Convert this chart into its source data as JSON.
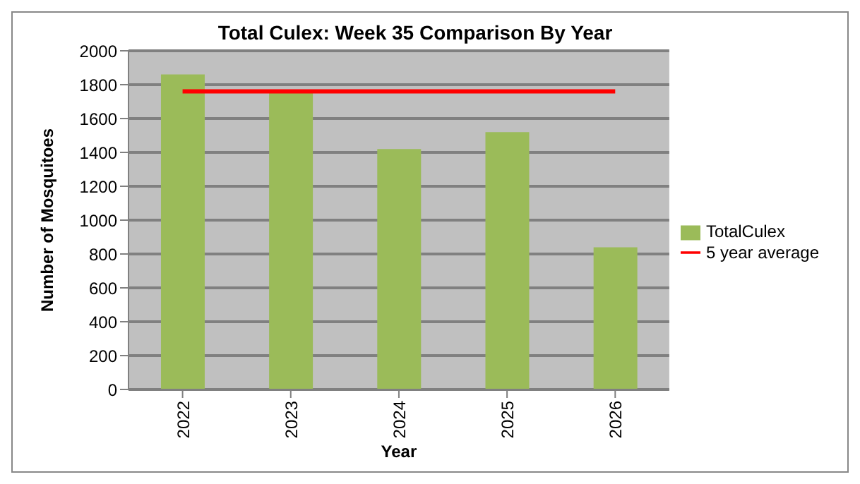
{
  "chart_data": {
    "type": "bar",
    "title": "Total Culex: Week 35 Comparison By Year",
    "xlabel": "Year",
    "ylabel": "Number of Mosquitoes",
    "categories": [
      "2022",
      "2023",
      "2024",
      "2025",
      "2026"
    ],
    "series": [
      {
        "name": "TotalCulex",
        "color": "#9bbb59",
        "values": [
          1860,
          1770,
          1420,
          1520,
          840
        ]
      },
      {
        "name": "5 year average",
        "type": "line",
        "color": "#ff0000",
        "values": [
          1760,
          1760,
          1760,
          1760,
          1760
        ],
        "marker": "none",
        "line_style": "solid"
      }
    ],
    "ylim": [
      0,
      2000
    ],
    "yticks": [
      0,
      200,
      400,
      600,
      800,
      1000,
      1200,
      1400,
      1600,
      1800,
      2000
    ],
    "grid": "y",
    "legend": "right"
  }
}
